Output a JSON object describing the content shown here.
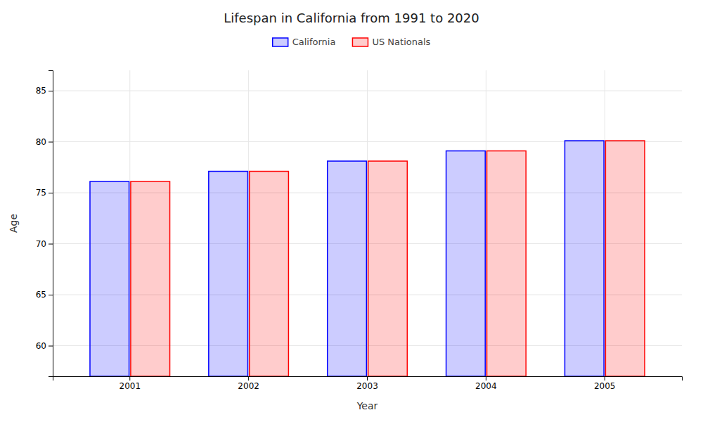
{
  "chart_data": {
    "type": "bar",
    "title": "Lifespan in California from 1991 to 2020",
    "xlabel": "Year",
    "ylabel": "Age",
    "categories": [
      "2001",
      "2002",
      "2003",
      "2004",
      "2005"
    ],
    "series": [
      {
        "name": "California",
        "color": "#0000ff",
        "values": [
          76.1,
          77.1,
          78.1,
          79.1,
          80.1
        ]
      },
      {
        "name": "US Nationals",
        "color": "#ff0000",
        "values": [
          76.1,
          77.1,
          78.1,
          79.1,
          80.1
        ]
      }
    ],
    "ylim": [
      57,
      87
    ],
    "yticks": [
      60,
      65,
      70,
      75,
      80,
      85
    ],
    "grid": true,
    "legend": "top"
  }
}
